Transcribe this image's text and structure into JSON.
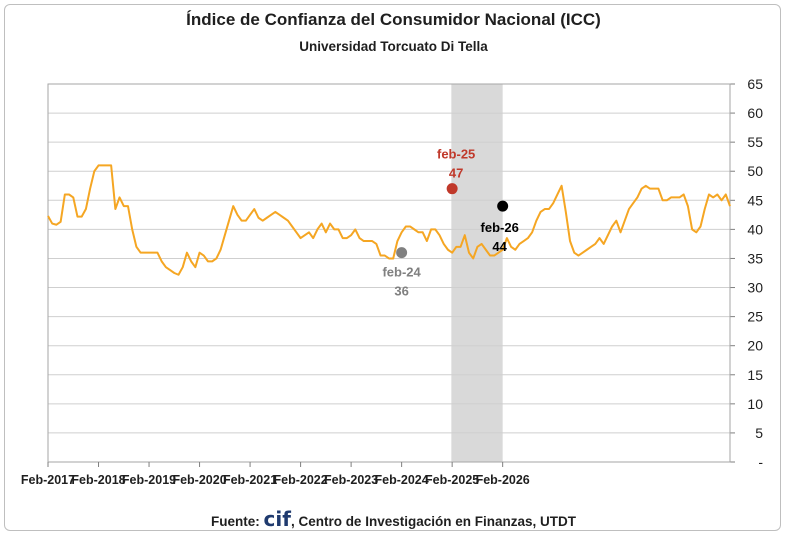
{
  "chart_data": {
    "type": "line",
    "title": "Índice de Confianza del Consumidor Nacional (ICC)",
    "subtitle": "Universidad Torcuato Di Tella",
    "xlabel": "",
    "ylabel": "",
    "ylim": [
      0,
      65
    ],
    "y_ticks": [
      "-",
      "5",
      "10",
      "15",
      "20",
      "25",
      "30",
      "35",
      "40",
      "45",
      "50",
      "55",
      "60",
      "65"
    ],
    "x_tick_labels": [
      "Feb-2017",
      "Feb-2018",
      "Feb-2019",
      "Feb-2020",
      "Feb-2021",
      "Feb-2022",
      "Feb-2023",
      "Feb-2024",
      "Feb-2025",
      "Feb-2026"
    ],
    "x_start": "2017-02",
    "series": [
      {
        "name": "",
        "color": "#f5a623",
        "values": [
          42.3,
          41,
          40.8,
          41.3,
          46,
          46,
          45.5,
          42.2,
          42.2,
          43.5,
          47,
          50,
          51,
          51,
          51,
          51,
          43.5,
          45.5,
          44,
          44,
          40,
          37,
          36,
          36,
          36,
          36,
          36,
          34.5,
          33.5,
          33,
          32.5,
          32.2,
          33.5,
          36,
          34.5,
          33.5,
          36,
          35.5,
          34.5,
          34.5,
          35,
          36.5,
          39,
          41.5,
          44,
          42.5,
          41.5,
          41.5,
          42.5,
          43.5,
          42,
          41.5,
          42,
          42.5,
          43,
          42.5,
          42,
          41.5,
          40.5,
          39.5,
          38.5,
          39,
          39.5,
          38.5,
          40,
          41,
          39.5,
          41,
          40,
          40,
          38.5,
          38.5,
          39,
          40,
          38.5,
          38,
          38,
          38,
          37.5,
          35.5,
          35.5,
          35,
          35,
          38,
          39.5,
          40.5,
          40.5,
          40,
          39.5,
          39.5,
          38,
          40,
          40,
          39,
          37.5,
          36.5,
          36,
          37,
          37,
          39,
          36,
          35,
          37,
          37.5,
          36.5,
          35.5,
          35.5,
          36,
          36.5,
          38.5,
          37,
          36.5,
          37.5,
          38,
          38.5,
          39.5,
          41.5,
          43,
          43.5,
          43.5,
          44.5,
          46,
          47.5,
          43,
          38,
          36,
          35.5,
          36,
          36.5,
          37,
          37.5,
          38.5,
          37.5,
          39,
          40.5,
          41.5,
          39.5,
          41.5,
          43.5,
          44.5,
          45.5,
          47,
          47.5,
          47,
          47,
          47,
          45,
          45,
          45.5,
          45.5,
          45.5,
          46,
          44,
          40,
          39.5,
          40.5,
          43.5,
          46,
          45.5,
          46,
          45,
          46,
          44
        ]
      }
    ],
    "shaded_region": {
      "from": "2025-03",
      "to": "2026-02",
      "color": "#d9d9d9"
    },
    "annotations": [
      {
        "label": "feb-24",
        "value": "36",
        "x": "2024-02",
        "y": 36,
        "color": "#808080"
      },
      {
        "label": "feb-25",
        "value": "47",
        "x": "2025-02",
        "y": 47,
        "color": "#c0392b"
      },
      {
        "label": "feb-26",
        "value": "44",
        "x": "2026-02",
        "y": 44,
        "color": "#000000"
      }
    ],
    "grid": true
  },
  "footer": {
    "prefix": "Fuente: ",
    "brand": "cif",
    "suffix": ", Centro de Investigación en Finanzas, UTDT"
  }
}
